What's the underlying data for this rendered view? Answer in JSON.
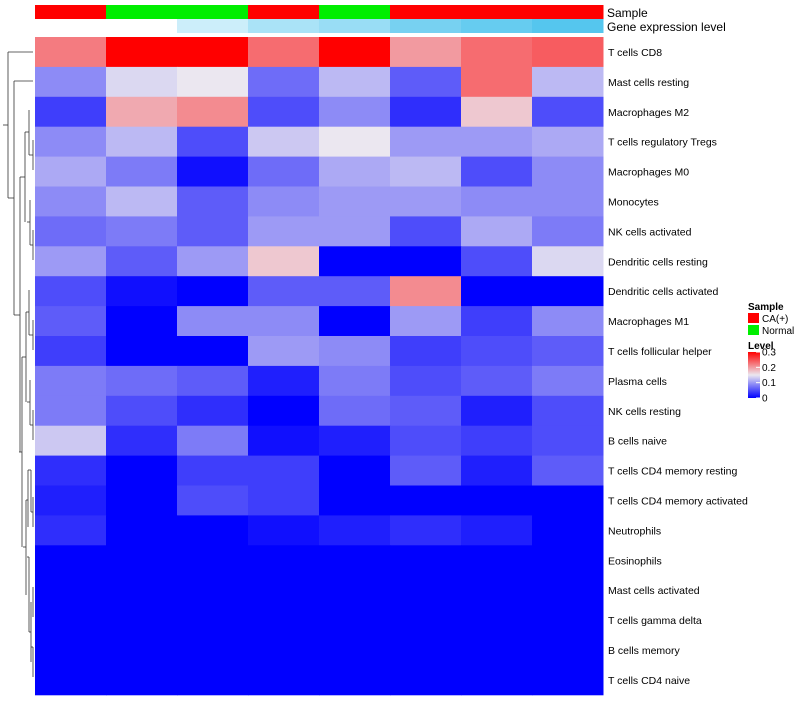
{
  "chart_data": {
    "type": "heatmap",
    "title": "",
    "annotation_tracks": [
      {
        "label": "Sample",
        "values": [
          "CA(+)",
          "Normal",
          "Normal",
          "CA(+)",
          "Normal",
          "CA(+)",
          "CA(+)",
          "CA(+)"
        ]
      },
      {
        "label": "Gene expression level",
        "values": [
          0.0,
          0.0,
          0.3,
          0.5,
          0.6,
          0.8,
          0.9,
          1.0
        ]
      }
    ],
    "rows": [
      "T cells CD8",
      "Mast cells resting",
      "Macrophages M2",
      "T cells regulatory  Tregs",
      "Macrophages M0",
      "Monocytes",
      "NK cells activated",
      "Dendritic cells resting",
      "Dendritic cells activated",
      "Macrophages M1",
      "T cells follicular helper",
      "Plasma cells",
      "NK cells resting",
      "B cells naive",
      "T cells CD4 memory resting",
      "T cells CD4 memory activated",
      "Neutrophils",
      "Eosinophils",
      "Mast cells activated",
      "T cells gamma delta",
      "B cells memory",
      "T cells CD4 naive"
    ],
    "columns": 8,
    "values": [
      [
        0.22,
        0.3,
        0.3,
        0.23,
        0.3,
        0.2,
        0.23,
        0.24
      ],
      [
        0.09,
        0.14,
        0.15,
        0.07,
        0.12,
        0.06,
        0.23,
        0.12
      ],
      [
        0.04,
        0.19,
        0.21,
        0.05,
        0.09,
        0.03,
        0.17,
        0.05
      ],
      [
        0.09,
        0.12,
        0.05,
        0.13,
        0.15,
        0.1,
        0.1,
        0.11
      ],
      [
        0.11,
        0.08,
        0.01,
        0.07,
        0.11,
        0.12,
        0.05,
        0.09
      ],
      [
        0.09,
        0.12,
        0.06,
        0.09,
        0.1,
        0.1,
        0.09,
        0.09
      ],
      [
        0.07,
        0.08,
        0.06,
        0.1,
        0.1,
        0.05,
        0.11,
        0.08
      ],
      [
        0.1,
        0.06,
        0.1,
        0.17,
        0.0,
        0.0,
        0.05,
        0.14
      ],
      [
        0.05,
        0.01,
        0.0,
        0.06,
        0.06,
        0.21,
        0.0,
        0.0
      ],
      [
        0.06,
        0.0,
        0.09,
        0.09,
        0.0,
        0.1,
        0.04,
        0.09
      ],
      [
        0.04,
        0.0,
        0.0,
        0.1,
        0.09,
        0.04,
        0.05,
        0.06
      ],
      [
        0.08,
        0.07,
        0.06,
        0.02,
        0.08,
        0.05,
        0.06,
        0.08
      ],
      [
        0.08,
        0.05,
        0.03,
        0.0,
        0.07,
        0.06,
        0.02,
        0.05
      ],
      [
        0.13,
        0.03,
        0.08,
        0.01,
        0.02,
        0.05,
        0.04,
        0.05
      ],
      [
        0.03,
        0.0,
        0.04,
        0.04,
        0.0,
        0.06,
        0.02,
        0.06
      ],
      [
        0.02,
        0.0,
        0.05,
        0.04,
        0.0,
        0.0,
        0.0,
        0.0
      ],
      [
        0.03,
        0.0,
        0.0,
        0.01,
        0.02,
        0.03,
        0.02,
        0.0
      ],
      [
        0.0,
        0.0,
        0.0,
        0.0,
        0.0,
        0.0,
        0.0,
        0.0
      ],
      [
        0.0,
        0.0,
        0.0,
        0.0,
        0.0,
        0.0,
        0.0,
        0.0
      ],
      [
        0.0,
        0.0,
        0.0,
        0.0,
        0.0,
        0.0,
        0.0,
        0.0
      ],
      [
        0.0,
        0.0,
        0.0,
        0.0,
        0.0,
        0.0,
        0.0,
        0.0
      ],
      [
        0.0,
        0.0,
        0.0,
        0.0,
        0.0,
        0.0,
        0.0,
        0.0
      ]
    ],
    "color_scale": {
      "min": 0,
      "max": 0.3,
      "colors": [
        "#0000ff",
        "#ebe7f0",
        "#ff0000"
      ]
    },
    "legend": {
      "sample_title": "Sample",
      "sample_items": [
        {
          "label": "CA(+)",
          "color": "#ff0000"
        },
        {
          "label": "Normal",
          "color": "#00ee00"
        }
      ],
      "level_title": "Level",
      "level_ticks": [
        "0.3",
        "0.2",
        "0.1",
        "0"
      ],
      "position": "right"
    },
    "row_dendrogram": "left"
  },
  "colors": {
    "sample_ca": "#ff0000",
    "sample_normal": "#00ee00",
    "gene_low": "#ffffff",
    "gene_high": "#55c6ee"
  }
}
